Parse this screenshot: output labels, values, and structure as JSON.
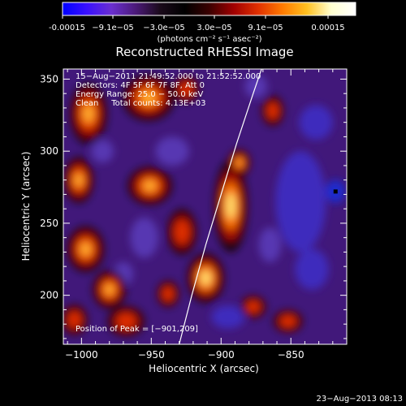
{
  "colorbar": {
    "tick_labels": [
      "-0.00015",
      "−9.1e−05",
      "−3.0e−05",
      "3.0e−05",
      "9.1e−05",
      "0.00015"
    ],
    "unit_label": "(photons cm⁻² s⁻¹ asec⁻²)",
    "colors": [
      "#0000ff",
      "#3a10ff",
      "#6a2fd0",
      "#4b1a78",
      "#1a0a1a",
      "#000000",
      "#3a0000",
      "#a00000",
      "#e03000",
      "#ff7a00",
      "#ffc020",
      "#ffffd0",
      "#ffffff"
    ]
  },
  "chart_data": {
    "type": "heatmap",
    "title": "Reconstructed RHESSI Image",
    "xlabel": "Heliocentric X (arcsec)",
    "ylabel": "Heliocentric Y (arcsec)",
    "xlim": [
      -1013,
      -810
    ],
    "ylim": [
      166,
      357
    ],
    "x_ticks": [
      -1000,
      -950,
      -900,
      -850
    ],
    "y_ticks": [
      200,
      250,
      300,
      350
    ],
    "x_tick_labels": [
      "−1000",
      "−950",
      "−900",
      "−850"
    ],
    "y_tick_labels": [
      "200",
      "250",
      "300",
      "350"
    ],
    "annotations": [
      "15−Aug−2011 21:49:52.000 to 21:52:52.000",
      "Detectors: 4F 5F 6F 7F 8F, Att 0",
      "Energy Range: 25.0 − 50.0 keV",
      "Clean     Total counts: 4.13E+03"
    ],
    "peak_label": "Position of Peak = [−901,209]",
    "peak": [
      -901,
      209
    ],
    "min_marker": [
      -818,
      272
    ],
    "limb_points": [
      [
        -930,
        166
      ],
      [
        -921,
        200
      ],
      [
        -911,
        235
      ],
      [
        -900,
        270
      ],
      [
        -889,
        305
      ],
      [
        -877,
        340
      ],
      [
        -871,
        357
      ]
    ],
    "bright_regions": [
      {
        "x": -893,
        "y": 262,
        "sx": 9,
        "sy": 24,
        "v": 1.0
      },
      {
        "x": -911,
        "y": 212,
        "sx": 10,
        "sy": 13,
        "v": 0.95
      },
      {
        "x": -887,
        "y": 292,
        "sx": 6,
        "sy": 7,
        "v": 0.75
      },
      {
        "x": -952,
        "y": 337,
        "sx": 14,
        "sy": 12,
        "v": 0.7
      },
      {
        "x": -995,
        "y": 326,
        "sx": 10,
        "sy": 16,
        "v": 0.85
      },
      {
        "x": -1002,
        "y": 280,
        "sx": 8,
        "sy": 12,
        "v": 0.65
      },
      {
        "x": -997,
        "y": 232,
        "sx": 10,
        "sy": 12,
        "v": 0.8
      },
      {
        "x": -980,
        "y": 204,
        "sx": 9,
        "sy": 10,
        "v": 0.7
      },
      {
        "x": -951,
        "y": 276,
        "sx": 12,
        "sy": 10,
        "v": 0.7
      },
      {
        "x": -928,
        "y": 244,
        "sx": 8,
        "sy": 12,
        "v": 0.55
      },
      {
        "x": -925,
        "y": 343,
        "sx": 7,
        "sy": 7,
        "v": 0.55
      },
      {
        "x": -968,
        "y": 182,
        "sx": 10,
        "sy": 8,
        "v": 0.6
      },
      {
        "x": -1005,
        "y": 183,
        "sx": 7,
        "sy": 8,
        "v": 0.6
      },
      {
        "x": -938,
        "y": 201,
        "sx": 6,
        "sy": 7,
        "v": 0.5
      },
      {
        "x": -863,
        "y": 328,
        "sx": 6,
        "sy": 8,
        "v": 0.55
      },
      {
        "x": -877,
        "y": 192,
        "sx": 7,
        "sy": 6,
        "v": 0.45
      },
      {
        "x": -852,
        "y": 182,
        "sx": 8,
        "sy": 6,
        "v": 0.45
      }
    ],
    "dark_regions": [
      {
        "x": -843,
        "y": 265,
        "sx": 18,
        "sy": 35,
        "v": 0.8
      },
      {
        "x": -818,
        "y": 272,
        "sx": 7,
        "sy": 8,
        "v": 1.0
      },
      {
        "x": -832,
        "y": 320,
        "sx": 12,
        "sy": 12,
        "v": 0.6
      },
      {
        "x": -835,
        "y": 218,
        "sx": 12,
        "sy": 14,
        "v": 0.6
      },
      {
        "x": -935,
        "y": 300,
        "sx": 12,
        "sy": 10,
        "v": 0.55
      },
      {
        "x": -955,
        "y": 240,
        "sx": 10,
        "sy": 14,
        "v": 0.5
      },
      {
        "x": -895,
        "y": 185,
        "sx": 12,
        "sy": 8,
        "v": 0.6
      },
      {
        "x": -865,
        "y": 235,
        "sx": 8,
        "sy": 12,
        "v": 0.5
      },
      {
        "x": -875,
        "y": 345,
        "sx": 8,
        "sy": 8,
        "v": 0.45
      },
      {
        "x": -985,
        "y": 300,
        "sx": 8,
        "sy": 8,
        "v": 0.4
      },
      {
        "x": -970,
        "y": 215,
        "sx": 7,
        "sy": 8,
        "v": 0.4
      }
    ]
  },
  "footer": {
    "timestamp": "23−Aug−2013 08:13"
  }
}
